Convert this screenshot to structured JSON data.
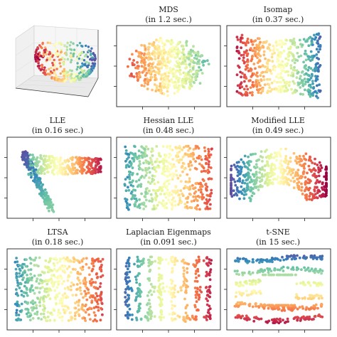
{
  "figure": {
    "panels": [
      {
        "title": "",
        "subtitle": ""
      },
      {
        "title": "MDS",
        "subtitle": "(in 1.2 sec.)"
      },
      {
        "title": "Isomap",
        "subtitle": "(in 0.37 sec.)"
      },
      {
        "title": "LLE",
        "subtitle": "(in 0.16 sec.)"
      },
      {
        "title": "Hessian LLE",
        "subtitle": "(in 0.48 sec.)"
      },
      {
        "title": "Modified LLE",
        "subtitle": "(in 0.49 sec.)"
      },
      {
        "title": "LTSA",
        "subtitle": "(in 0.18 sec.)"
      },
      {
        "title": "Laplacian Eigenmaps",
        "subtitle": "(in 0.091 sec.)"
      },
      {
        "title": "t-SNE",
        "subtitle": "(in 15 sec.)"
      }
    ]
  },
  "chart_data": [
    {
      "type": "scatter",
      "projection": "3d",
      "title": "",
      "colormap": "Spectral",
      "shape": "sphere",
      "x_ticks": 3,
      "y_ticks": 3
    },
    {
      "type": "scatter",
      "title": "MDS (in 1.2 sec.)",
      "colormap": "Spectral",
      "shape": "ellipse",
      "x_ticks": 3,
      "y_ticks": 3
    },
    {
      "type": "scatter",
      "title": "Isomap (in 0.37 sec.)",
      "colormap": "Spectral",
      "shape": "bowtie",
      "x_ticks": 3,
      "y_ticks": 3
    },
    {
      "type": "scatter",
      "title": "LLE (in 0.16 sec.)",
      "colormap": "Spectral",
      "shape": "fan",
      "x_ticks": 3,
      "y_ticks": 3
    },
    {
      "type": "scatter",
      "title": "Hessian LLE (in 0.48 sec.)",
      "colormap": "Spectral",
      "shape": "rectangle",
      "x_ticks": 3,
      "y_ticks": 3
    },
    {
      "type": "scatter",
      "title": "Modified LLE (in 0.49 sec.)",
      "colormap": "Spectral",
      "shape": "arch",
      "x_ticks": 3,
      "y_ticks": 3
    },
    {
      "type": "scatter",
      "title": "LTSA (in 0.18 sec.)",
      "colormap": "Spectral",
      "shape": "rectangle",
      "x_ticks": 3,
      "y_ticks": 3
    },
    {
      "type": "scatter",
      "title": "Laplacian Eigenmaps (in 0.091 sec.)",
      "colormap": "Spectral",
      "shape": "sparse",
      "x_ticks": 3,
      "y_ticks": 3
    },
    {
      "type": "scatter",
      "title": "t-SNE (in 15 sec.)",
      "colormap": "Spectral",
      "shape": "bands",
      "x_ticks": 3,
      "y_ticks": 3
    }
  ]
}
